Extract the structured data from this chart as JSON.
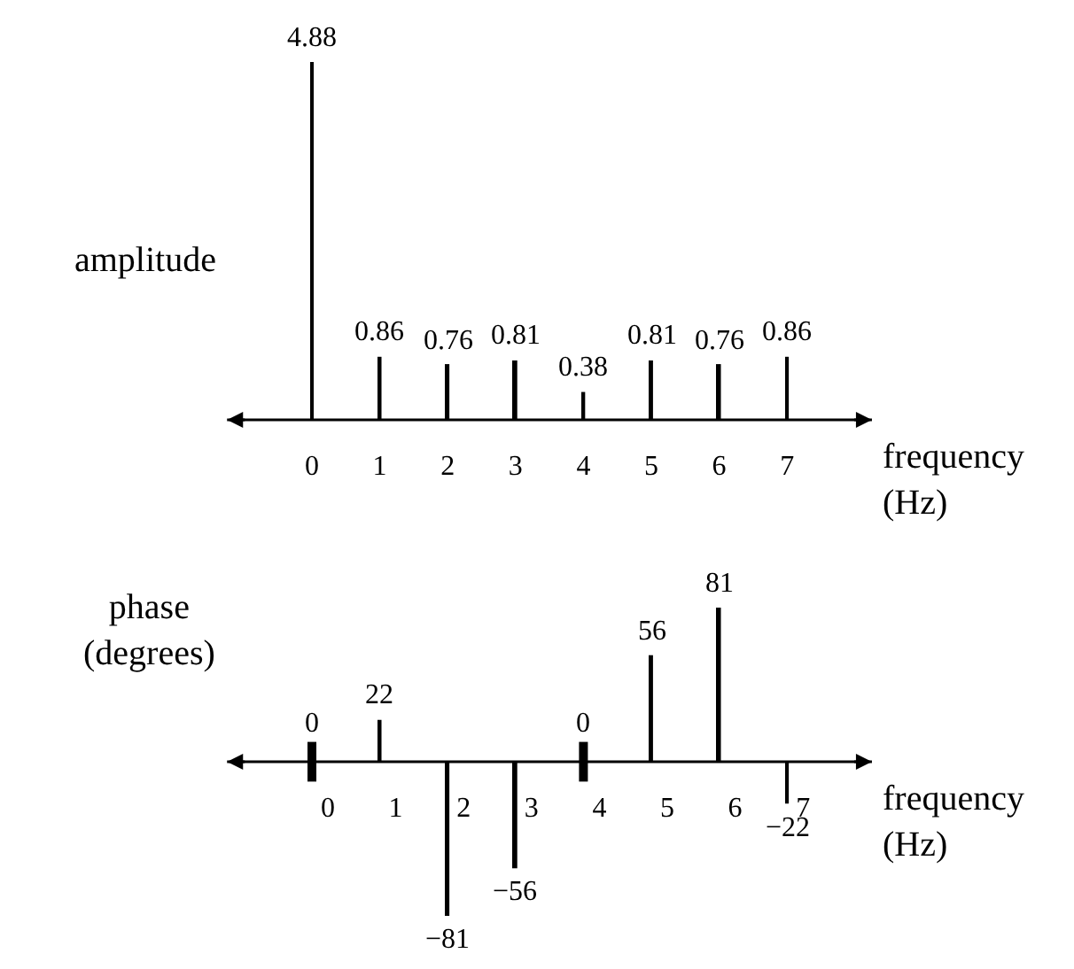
{
  "chart_data": [
    {
      "type": "bar",
      "ylabel": "amplitude",
      "xlabel": "frequency\n(Hz)",
      "categories": [
        "0",
        "1",
        "2",
        "3",
        "4",
        "5",
        "6",
        "7"
      ],
      "values": [
        4.88,
        0.86,
        0.76,
        0.81,
        0.38,
        0.81,
        0.76,
        0.86
      ],
      "color": "#000000",
      "data_labels": true
    },
    {
      "type": "bar",
      "ylabel": "phase\n(degrees)",
      "xlabel": "frequency\n(Hz)",
      "categories": [
        "0",
        "1",
        "2",
        "3",
        "4",
        "5",
        "6",
        "7"
      ],
      "values": [
        0,
        22,
        -81,
        -56,
        0,
        56,
        81,
        -22
      ],
      "value_labels": [
        "0",
        "22",
        "−81",
        "−56",
        "0",
        "56",
        "81",
        "−22"
      ],
      "color": "#000000"
    }
  ]
}
